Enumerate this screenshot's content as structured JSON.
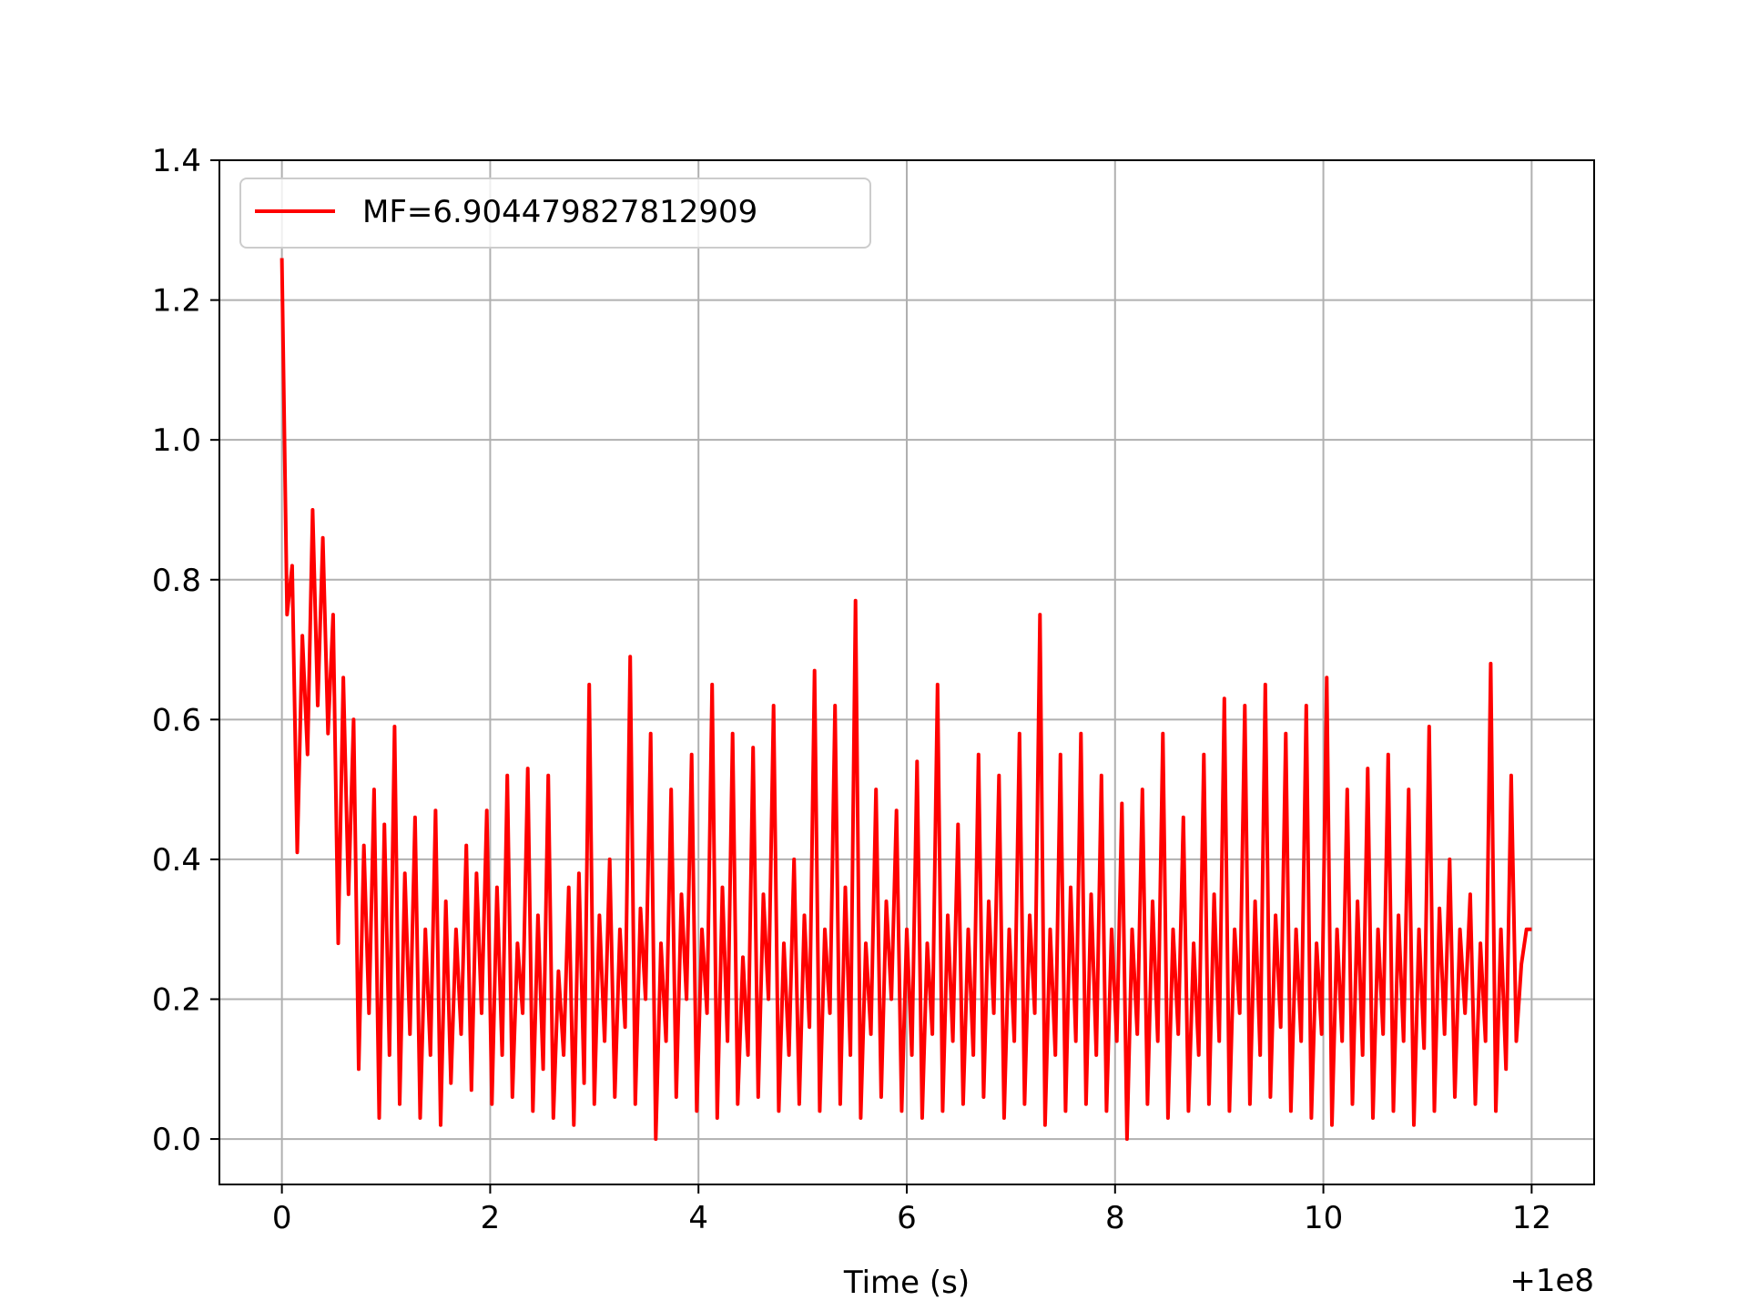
{
  "chart_data": {
    "type": "line",
    "title": "",
    "xlabel": "Time (s)",
    "ylabel": "",
    "x_offset_label": "+1e8",
    "xlim": [
      -0.6,
      12.6
    ],
    "ylim": [
      -0.065,
      1.4
    ],
    "xticks": [
      0,
      2,
      4,
      6,
      8,
      10,
      12
    ],
    "xtick_labels": [
      "0",
      "2",
      "4",
      "6",
      "8",
      "10",
      "12"
    ],
    "yticks": [
      0.0,
      0.2,
      0.4,
      0.6,
      0.8,
      1.0,
      1.2,
      1.4
    ],
    "ytick_labels": [
      "0.0",
      "0.2",
      "0.4",
      "0.6",
      "0.8",
      "1.0",
      "1.2",
      "1.4"
    ],
    "grid": true,
    "legend_position": "top-left",
    "series": [
      {
        "name": "MF=6.904479827812909",
        "color": "#ff0000",
        "x_start": 0,
        "x_end": 12,
        "values": [
          1.26,
          0.75,
          0.82,
          0.41,
          0.72,
          0.55,
          0.9,
          0.62,
          0.86,
          0.58,
          0.75,
          0.28,
          0.66,
          0.35,
          0.6,
          0.1,
          0.42,
          0.18,
          0.5,
          0.03,
          0.45,
          0.12,
          0.59,
          0.05,
          0.38,
          0.15,
          0.46,
          0.03,
          0.3,
          0.12,
          0.47,
          0.02,
          0.34,
          0.08,
          0.3,
          0.15,
          0.42,
          0.07,
          0.38,
          0.18,
          0.47,
          0.05,
          0.36,
          0.12,
          0.52,
          0.06,
          0.28,
          0.18,
          0.53,
          0.04,
          0.32,
          0.1,
          0.52,
          0.03,
          0.24,
          0.12,
          0.36,
          0.02,
          0.38,
          0.08,
          0.65,
          0.05,
          0.32,
          0.14,
          0.4,
          0.06,
          0.3,
          0.16,
          0.69,
          0.05,
          0.33,
          0.2,
          0.58,
          0.0,
          0.28,
          0.14,
          0.5,
          0.06,
          0.35,
          0.2,
          0.55,
          0.04,
          0.3,
          0.18,
          0.65,
          0.03,
          0.36,
          0.14,
          0.58,
          0.05,
          0.26,
          0.12,
          0.56,
          0.06,
          0.35,
          0.2,
          0.62,
          0.04,
          0.28,
          0.12,
          0.4,
          0.05,
          0.32,
          0.16,
          0.67,
          0.04,
          0.3,
          0.18,
          0.62,
          0.05,
          0.36,
          0.12,
          0.77,
          0.03,
          0.28,
          0.15,
          0.5,
          0.06,
          0.34,
          0.2,
          0.47,
          0.04,
          0.3,
          0.12,
          0.54,
          0.03,
          0.28,
          0.15,
          0.65,
          0.04,
          0.32,
          0.14,
          0.45,
          0.05,
          0.3,
          0.12,
          0.55,
          0.06,
          0.34,
          0.18,
          0.52,
          0.03,
          0.3,
          0.14,
          0.58,
          0.05,
          0.32,
          0.18,
          0.75,
          0.02,
          0.3,
          0.12,
          0.55,
          0.04,
          0.36,
          0.14,
          0.58,
          0.05,
          0.35,
          0.12,
          0.52,
          0.04,
          0.3,
          0.14,
          0.48,
          0.0,
          0.3,
          0.15,
          0.5,
          0.05,
          0.34,
          0.14,
          0.58,
          0.03,
          0.3,
          0.15,
          0.46,
          0.04,
          0.28,
          0.12,
          0.55,
          0.05,
          0.35,
          0.14,
          0.63,
          0.04,
          0.3,
          0.18,
          0.62,
          0.05,
          0.34,
          0.12,
          0.65,
          0.06,
          0.32,
          0.16,
          0.58,
          0.04,
          0.3,
          0.14,
          0.62,
          0.03,
          0.28,
          0.15,
          0.66,
          0.02,
          0.3,
          0.14,
          0.5,
          0.05,
          0.34,
          0.12,
          0.53,
          0.03,
          0.3,
          0.15,
          0.55,
          0.04,
          0.32,
          0.14,
          0.5,
          0.02,
          0.3,
          0.13,
          0.59,
          0.04,
          0.33,
          0.15,
          0.4,
          0.06,
          0.3,
          0.18,
          0.35,
          0.05,
          0.28,
          0.14,
          0.68,
          0.04,
          0.3,
          0.1,
          0.52,
          0.14,
          0.25,
          0.3,
          0.3
        ]
      }
    ]
  }
}
